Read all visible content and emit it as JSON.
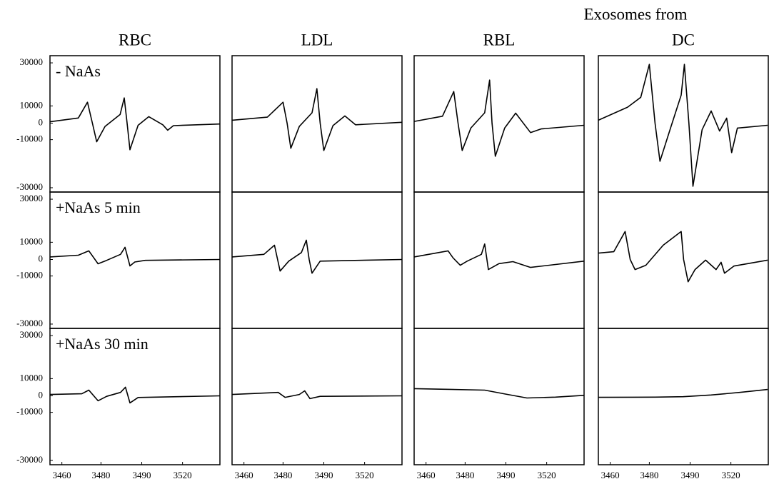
{
  "figure_title": "Exosomes from",
  "columns": [
    "RBC",
    "LDL",
    "RBL",
    "DC"
  ],
  "rows": [
    "- NaAs",
    "+NaAs 5 min",
    "+NaAs 30 min"
  ],
  "xlim": [
    3450,
    3535
  ],
  "xticks": [
    3460,
    3480,
    3490,
    3520
  ],
  "ylim": [
    -33000,
    33000
  ],
  "yticks": [
    30000,
    10000,
    0,
    -10000,
    -30000
  ],
  "chart_data": [
    {
      "type": "line",
      "color": "#000000",
      "x": [
        3450,
        3468.4,
        3473.1,
        3475.6,
        3477.8,
        3481.0,
        3484.7,
        3485.7,
        3486.4,
        3487.1,
        3489.1,
        3495.2,
        3505.5,
        3509.1,
        3513.3,
        3535
      ],
      "values": [
        800,
        3000,
        11700,
        0,
        -10900,
        -2000,
        5000,
        13700,
        0,
        -14200,
        -1300,
        3750,
        -1000,
        -4300,
        -1500,
        -500
      ]
    },
    {
      "type": "line",
      "color": "#000000",
      "x": [
        3450,
        3472.0,
        3480,
        3481.0,
        3481.9,
        3484.0,
        3487.1,
        3488.3,
        3489.1,
        3490,
        3496.7,
        3505.5,
        3513.3,
        3535
      ],
      "values": [
        1700,
        3500,
        11700,
        0,
        -13600,
        -2000,
        6000,
        18000,
        0,
        -14500,
        -1500,
        4200,
        -1000,
        500
      ]
    },
    {
      "type": "line",
      "color": "#000000",
      "x": [
        3450,
        3468.4,
        3474.2,
        3476.4,
        3478.5,
        3481.4,
        3484.8,
        3486.0,
        3486.6,
        3487.4,
        3489.7,
        3497.2,
        3508.1,
        3515.9,
        3535
      ],
      "values": [
        1000,
        4000,
        16700,
        0,
        -14500,
        -3000,
        6000,
        22000,
        0,
        -16900,
        -3000,
        5800,
        -5700,
        -3500,
        -1300
      ]
    },
    {
      "type": "line",
      "color": "#000000",
      "x": [
        3450,
        3468.9,
        3475.6,
        3480,
        3481.4,
        3482.6,
        3485.2,
        3487.8,
        3488.6,
        3489.7,
        3492.1,
        3498.8,
        3505.5,
        3511.7,
        3516.9,
        3520.3,
        3522.6,
        3534.7
      ],
      "values": [
        1700,
        9300,
        14000,
        29300,
        0,
        -19000,
        -3000,
        15000,
        29300,
        0,
        -29400,
        -4000,
        7100,
        -4800,
        2900,
        -15400,
        -3000,
        -1300
      ]
    },
    {
      "type": "line",
      "color": "#000000",
      "x": [
        3450,
        3468.4,
        3473.8,
        3478.5,
        3481.4,
        3484.8,
        3485.9,
        3487.1,
        3488.3,
        3492.6,
        3535
      ],
      "values": [
        1500,
        2500,
        5000,
        -2600,
        -500,
        3000,
        7100,
        -3900,
        -1500,
        -500,
        0
      ]
    },
    {
      "type": "line",
      "color": "#000000",
      "x": [
        3450,
        3470.2,
        3475.6,
        3478.5,
        3481.4,
        3484.5,
        3485.7,
        3486.4,
        3487.1,
        3489.1,
        3535
      ],
      "values": [
        1500,
        3000,
        8300,
        -7000,
        -1000,
        4000,
        11000,
        0,
        -8300,
        -1000,
        0
      ]
    },
    {
      "type": "line",
      "color": "#000000",
      "x": [
        3450,
        3471.3,
        3473.8,
        3477.5,
        3480.5,
        3484.0,
        3484.8,
        3485.7,
        3488.3,
        3495.2,
        3508.1,
        3535
      ],
      "values": [
        1500,
        5000,
        1000,
        -3500,
        -1000,
        3000,
        9000,
        -6100,
        -2500,
        -1300,
        -4800,
        -1000
      ]
    },
    {
      "type": "line",
      "color": "#000000",
      "x": [
        3450,
        3461.8,
        3467.6,
        3470.2,
        3472.7,
        3478.2,
        3483.4,
        3487.8,
        3488.4,
        3489.5,
        3493.6,
        3501.4,
        3509.1,
        3512.8,
        3515.3,
        3521.2,
        3534.7
      ],
      "values": [
        3700,
        4500,
        15000,
        0,
        -6100,
        -3500,
        8300,
        15000,
        0,
        -12400,
        -6100,
        -400,
        -6100,
        -1700,
        -8300,
        -4000,
        -400
      ]
    },
    {
      "type": "line",
      "color": "#000000",
      "x": [
        3450,
        3470.2,
        3473.8,
        3478.5,
        3481.4,
        3484.8,
        3486.0,
        3487.1,
        3489.1,
        3535
      ],
      "values": [
        800,
        1200,
        3300,
        -3000,
        -300,
        2000,
        5000,
        -4300,
        -1000,
        0
      ]
    },
    {
      "type": "line",
      "color": "#000000",
      "x": [
        3450,
        3477.5,
        3480.5,
        3484.0,
        3485.3,
        3486.6,
        3489.1,
        3535
      ],
      "values": [
        800,
        2000,
        -900,
        800,
        2900,
        -1700,
        -300,
        0
      ]
    },
    {
      "type": "line",
      "color": "#000000",
      "x": [
        3450,
        3484.8,
        3490,
        3505.5,
        3523.5,
        3535
      ],
      "values": [
        4200,
        3300,
        1000,
        -1300,
        -800,
        300
      ]
    },
    {
      "type": "line",
      "color": "#000000",
      "x": [
        3450,
        3481.4,
        3488.3,
        3505.5,
        3523.5,
        3534.7
      ],
      "values": [
        -900,
        -800,
        -500,
        500,
        2000,
        3700
      ]
    }
  ]
}
